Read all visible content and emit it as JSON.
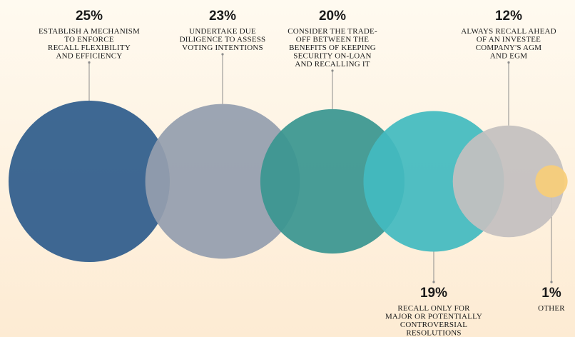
{
  "colors": {
    "background_top": "#fffaf0",
    "background_bottom": "#fdebd3",
    "leader_line": "#8c8c8c"
  },
  "chart_data": {
    "type": "bubble",
    "title": "",
    "legend": "none",
    "grid": false,
    "items": [
      {
        "value": 25,
        "label_pct": "25%",
        "label_lines": [
          "ESTABLISH A MECHANISM",
          "TO ENFORCE",
          "RECALL FLEXIBILITY",
          "AND EFFICIENCY"
        ],
        "color": "#2f5c8c",
        "label_side": "top"
      },
      {
        "value": 23,
        "label_pct": "23%",
        "label_lines": [
          "UNDERTAKE DUE",
          "DILIGENCE TO ASSESS",
          "VOTING INTENTIONS"
        ],
        "color": "#949eae",
        "label_side": "top"
      },
      {
        "value": 20,
        "label_pct": "20%",
        "label_lines": [
          "CONSIDER THE TRADE-",
          "OFF BETWEEN THE",
          "BENEFITS OF KEEPING",
          "SECURITY ON-LOAN",
          "AND RECALLING IT"
        ],
        "color": "#3a9690",
        "label_side": "top"
      },
      {
        "value": 19,
        "label_pct": "19%",
        "label_lines": [
          "RECALL ONLY FOR",
          "MAJOR OR POTENTIALLY",
          "CONTROVERSIAL",
          "RESOLUTIONS"
        ],
        "color": "#43bac0",
        "label_side": "bottom"
      },
      {
        "value": 12,
        "label_pct": "12%",
        "label_lines": [
          "ALWAYS RECALL AHEAD",
          "OF AN INVESTEE",
          "COMPANY'S AGM",
          "AND EGM"
        ],
        "color": "#c4bfc0",
        "label_side": "top"
      },
      {
        "value": 1,
        "label_pct": "1%",
        "label_lines": [
          "OTHER"
        ],
        "color": "#f7cd78",
        "label_side": "bottom"
      }
    ]
  }
}
